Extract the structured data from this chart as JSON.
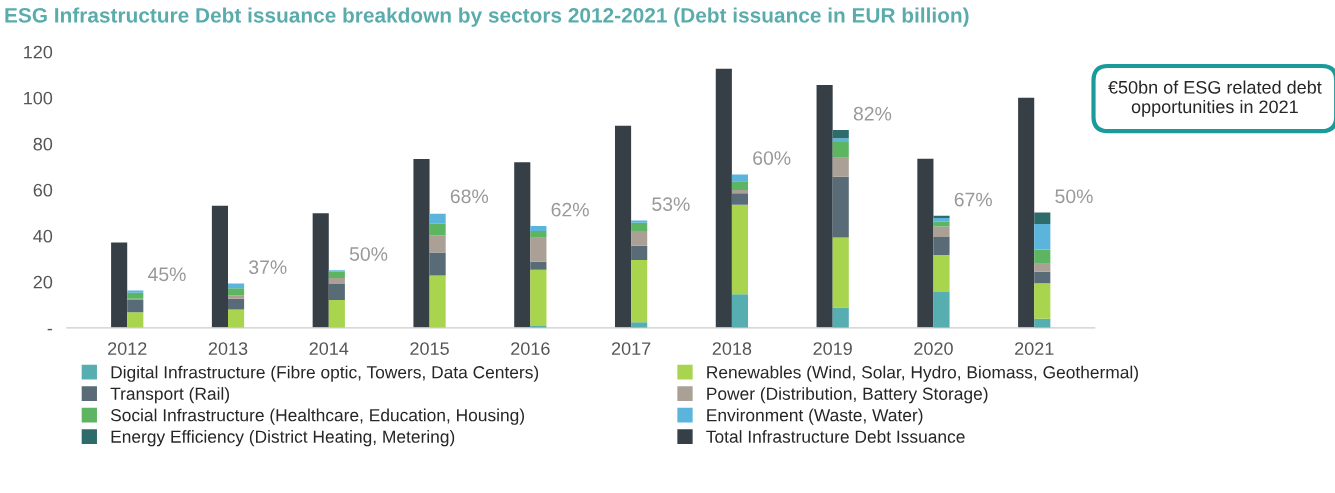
{
  "chart_data": [
    {
      "type": "bar",
      "title": "ESG Infrastructure Debt issuance breakdown by sectors 2012-2021 (Debt issuance in EUR billion)",
      "categories": [
        "2012",
        "2013",
        "2014",
        "2015",
        "2016",
        "2017",
        "2018",
        "2019",
        "2020",
        "2021"
      ],
      "series": [
        {
          "name": "Total Infrastructure Debt Issuance",
          "color": "#353f45",
          "values": [
            37.1,
            53.1,
            49.8,
            73.4,
            72.0,
            87.8,
            112.6,
            105.6,
            73.5,
            100
          ]
        }
      ],
      "ylim": [
        0,
        120
      ],
      "yticks": [
        {
          "value": 0,
          "label": "-"
        },
        20,
        40,
        60,
        80,
        100,
        120
      ],
      "legend": "bottom",
      "annotations": [
        "€50bn of ESG related debt opportunities in 2021"
      ]
    },
    {
      "type": "bar",
      "categories": [
        "2012",
        "2013",
        "2014",
        "2015",
        "2016",
        "2017",
        "2018",
        "2019",
        "2020",
        "2021"
      ],
      "stacked": true,
      "series": [
        {
          "name": "Digital Infrastructure (Fibre optic, Towers, Data Centers)",
          "color": "#56aeb0",
          "values": [
            0,
            0,
            0,
            null,
            0.8,
            2.4,
            14.6,
            8.8,
            15.6,
            4.0
          ]
        },
        {
          "name": "Renewables (Wind, Solar, Hydro, Biomass, Geothermal)",
          "color": "#a8d44e",
          "values": [
            6.8,
            8.0,
            12.1,
            22.7,
            24.4,
            27.1,
            38.9,
            30.5,
            16.1,
            15.4
          ]
        },
        {
          "name": "Transport (Rail)",
          "color": "#5a6b78",
          "values": [
            5.3,
            4.7,
            7.0,
            10.0,
            3.5,
            6.2,
            5.0,
            26.4,
            7.8,
            5.0
          ]
        },
        {
          "name": "Power (Distribution, Battery Storage)",
          "color": "#aaa095",
          "values": [
            0.6,
            1.5,
            2.6,
            7.6,
            10.5,
            6.4,
            1.4,
            8.2,
            4.6,
            3.5
          ]
        },
        {
          "name": "Social Infrastructure (Healthcare, Education, Housing)",
          "color": "#5db562",
          "values": [
            2.5,
            3.0,
            2.7,
            4.9,
            2.9,
            3.6,
            3.8,
            6.9,
            2.0,
            6.2
          ]
        },
        {
          "name": "Environment (Waste, Water)",
          "color": "#5ab4dc",
          "values": [
            1.0,
            2.1,
            0.6,
            4.4,
            2.2,
            1.0,
            3.0,
            1.6,
            1.6,
            11.0
          ]
        },
        {
          "name": "Energy Efficiency (District Heating, Metering)",
          "color": "#2e6b6b",
          "values": [
            0,
            0,
            0,
            0,
            0,
            0,
            0,
            3.6,
            1.0,
            5.0
          ]
        }
      ],
      "ylim": [
        0,
        120
      ],
      "tick_labels": false,
      "legend": "bottom",
      "annotations": [
        {
          "text": "45%",
          "x": "2012",
          "y": 16.2
        },
        {
          "text": "37%",
          "x": "2013",
          "y": 19.3
        },
        {
          "text": "50%",
          "x": "2014",
          "y": 25.0
        },
        {
          "text": "68%",
          "x": "2015",
          "y": 50.1
        },
        {
          "text": "62%",
          "x": "2016",
          "y": 44.3
        },
        {
          "text": "53%",
          "x": "2017",
          "y": 46.7
        },
        {
          "text": "60%",
          "x": "2018",
          "y": 66.7
        },
        {
          "text": "82%",
          "x": "2019",
          "y": 86.0
        },
        {
          "text": "67%",
          "x": "2020",
          "y": 48.7
        },
        {
          "text": "50%",
          "x": "2021",
          "y": 50.1
        }
      ]
    }
  ]
}
